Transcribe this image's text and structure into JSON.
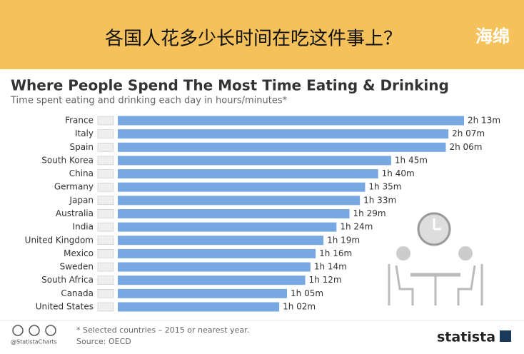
{
  "banner": {
    "title": "各国人花多少长时间在吃这件事上？",
    "logo": "海绵"
  },
  "chart_data": {
    "type": "bar",
    "orientation": "horizontal",
    "title": "Where People Spend The Most Time Eating & Drinking",
    "subtitle": "Time spent eating and drinking each day in hours/minutes*",
    "categories": [
      "France",
      "Italy",
      "Spain",
      "South Korea",
      "China",
      "Germany",
      "Japan",
      "Australia",
      "India",
      "United Kingdom",
      "Mexico",
      "Sweden",
      "South Africa",
      "Canada",
      "United States"
    ],
    "values": [
      133,
      127,
      126,
      105,
      100,
      95,
      93,
      89,
      84,
      79,
      76,
      74,
      72,
      65,
      62
    ],
    "value_labels": [
      "2h 13m",
      "2h 07m",
      "2h 06m",
      "1h 45m",
      "1h 40m",
      "1h 35m",
      "1h 33m",
      "1h 29m",
      "1h 24m",
      "1h 19m",
      "1h 16m",
      "1h 14m",
      "1h 12m",
      "1h 05m",
      "1h 02m"
    ],
    "color": "#78a8e2"
  },
  "footer": {
    "note": "* Selected countries – 2015 or nearest year.",
    "source": "Source: OECD",
    "handle": "@StatistaCharts",
    "brand": "statista"
  }
}
